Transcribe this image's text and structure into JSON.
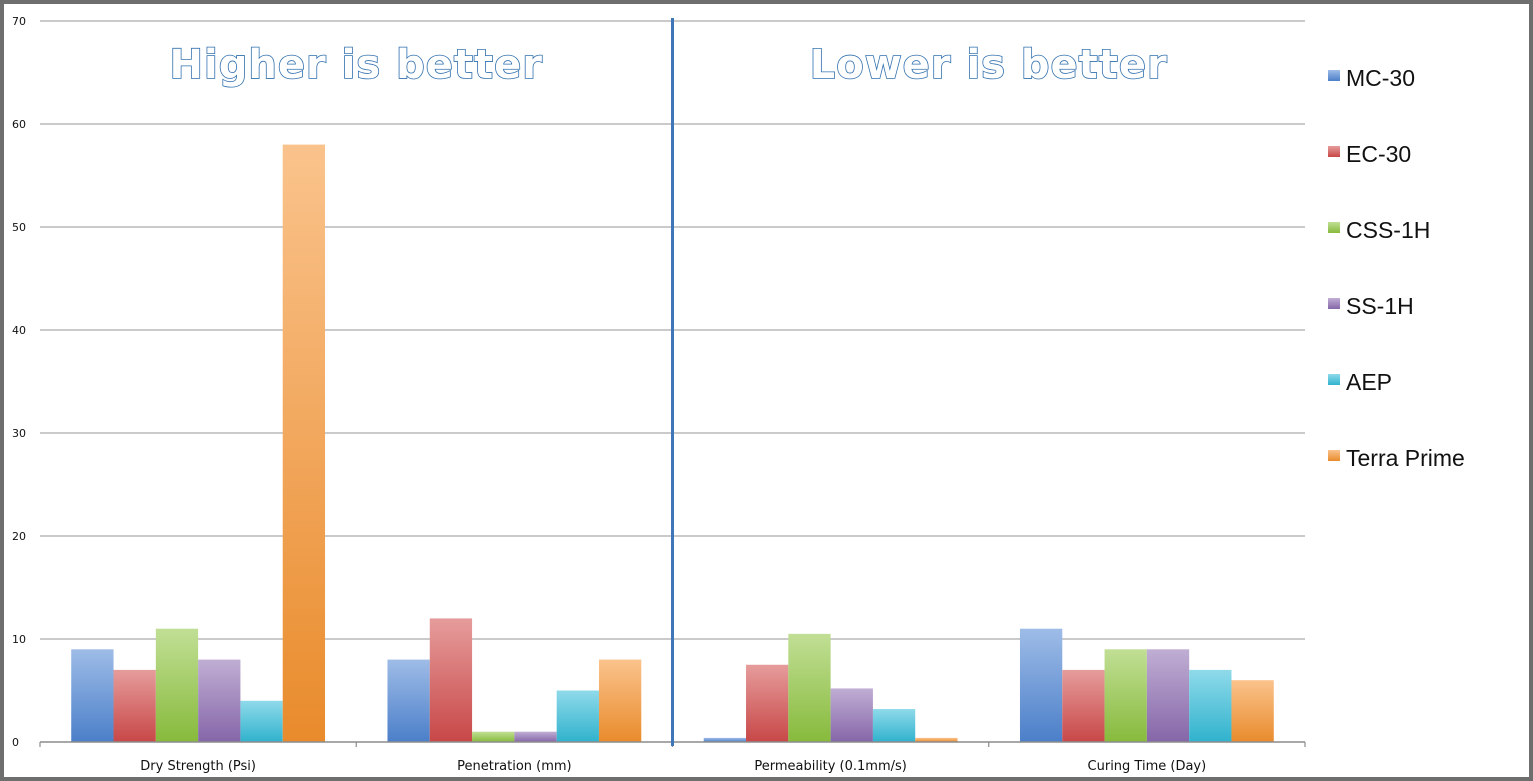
{
  "chart_data": {
    "type": "bar",
    "categories": [
      "Dry Strength (Psi)",
      "Penetration (mm)",
      "Permeability (0.1mm/s)",
      "Curing Time (Day)"
    ],
    "series": [
      {
        "name": "MC-30",
        "color": "#4f86d4",
        "values": [
          9,
          8,
          0.4,
          11
        ]
      },
      {
        "name": "EC-30",
        "color": "#d24b4b",
        "values": [
          7,
          12,
          7.5,
          7
        ]
      },
      {
        "name": "CSS-1H",
        "color": "#8ec43f",
        "values": [
          11,
          1,
          10.5,
          9
        ]
      },
      {
        "name": "SS-1H",
        "color": "#8c6bb1",
        "values": [
          8,
          1,
          5.2,
          9
        ]
      },
      {
        "name": "AEP",
        "color": "#33bbd8",
        "values": [
          4,
          5,
          3.2,
          7
        ]
      },
      {
        "name": "Terra Prime",
        "color": "#f5922e",
        "values": [
          58,
          8,
          0.4,
          6
        ]
      }
    ],
    "yticks": [
      0,
      10,
      20,
      30,
      40,
      50,
      60,
      70
    ],
    "ylim": [
      0,
      70
    ],
    "grid": true,
    "legend": "right",
    "annotations": [
      "Higher is better",
      "Lower is better"
    ],
    "divider_color": "#3f76b8"
  }
}
